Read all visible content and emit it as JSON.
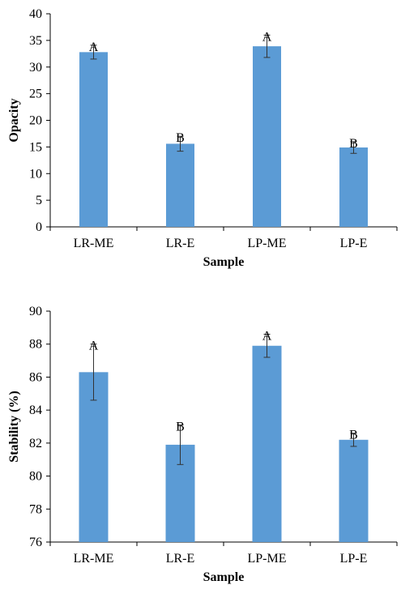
{
  "chart_data": [
    {
      "type": "bar",
      "categories": [
        "LR-ME",
        "LR-E",
        "LP-ME",
        "LP-E"
      ],
      "values": [
        32.8,
        15.6,
        33.9,
        14.9
      ],
      "error": [
        1.3,
        1.4,
        2.1,
        1.1
      ],
      "letters": [
        "A",
        "B",
        "A",
        "B"
      ],
      "ticks": [
        "0",
        "5",
        "10",
        "15",
        "20",
        "25",
        "30",
        "35",
        "40"
      ],
      "ylim": [
        0,
        40
      ],
      "xlabel": "Sample",
      "ylabel": "Opacity",
      "bar_color": "#5b9bd5",
      "grid": false
    },
    {
      "type": "bar",
      "categories": [
        "LR-ME",
        "LR-E",
        "LP-ME",
        "LP-E"
      ],
      "values": [
        86.3,
        81.9,
        87.9,
        82.2
      ],
      "error": [
        1.7,
        1.2,
        0.7,
        0.4
      ],
      "letters": [
        "A",
        "B",
        "A",
        "B"
      ],
      "ticks": [
        "76",
        "78",
        "80",
        "82",
        "84",
        "86",
        "88",
        "90"
      ],
      "ylim": [
        76,
        90
      ],
      "xlabel": "Sample",
      "ylabel": "Stability (%)",
      "bar_color": "#5b9bd5",
      "grid": false
    }
  ]
}
